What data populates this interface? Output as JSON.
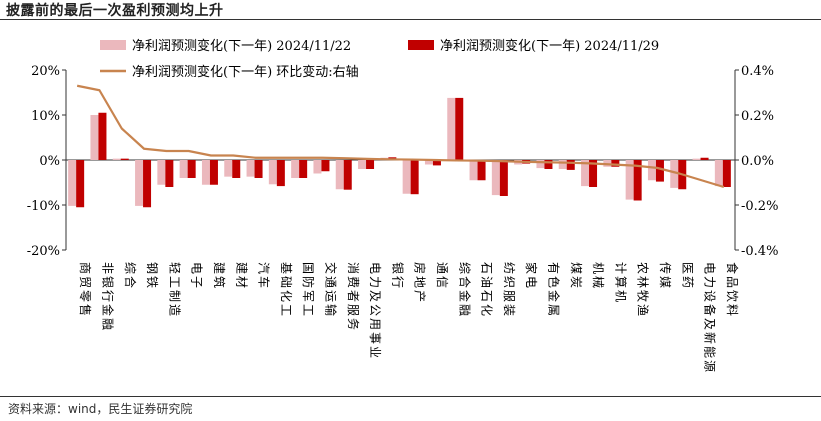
{
  "header": {
    "title": "披露前的最后一次盈利预测均上升"
  },
  "footer": {
    "source": "资料来源：wind，民生证券研究院"
  },
  "colors": {
    "series_a": "#ebb8bd",
    "series_b": "#c00000",
    "series_c": "#c8844f",
    "axis": "#333333"
  },
  "chart_data": {
    "type": "bar",
    "title": "",
    "xlabel": "",
    "ylabel": "",
    "categories": [
      "商贸零售",
      "非银行金融",
      "综合",
      "钢铁",
      "轻工制造",
      "电子",
      "建筑",
      "建材",
      "汽车",
      "基础化工",
      "国防军工",
      "交通运输",
      "消费者服务",
      "电力及公用事业",
      "银行",
      "房地产",
      "通信",
      "综合金融",
      "石油石化",
      "纺织服装",
      "家电",
      "有色金属",
      "煤炭",
      "机械",
      "计算机",
      "农林牧渔",
      "传媒",
      "医药",
      "电力设备及新能源",
      "食品饮料"
    ],
    "series": [
      {
        "name": "净利润预测变化(下一年) 2024/11/22",
        "kind": "bar",
        "axis": "left",
        "values": [
          -10.2,
          10.0,
          0.3,
          -10.2,
          -5.5,
          -4.0,
          -5.5,
          -3.7,
          -3.7,
          -5.4,
          -4.0,
          -3.0,
          -6.5,
          -2.0,
          0.5,
          -7.5,
          -1.0,
          13.8,
          -4.5,
          -7.8,
          -1.0,
          -1.8,
          -2.0,
          -5.8,
          -1.5,
          -8.8,
          -4.5,
          -6.2,
          0.3,
          -5.8
        ]
      },
      {
        "name": "净利润预测变化(下一年) 2024/11/29",
        "kind": "bar",
        "axis": "left",
        "values": [
          -10.5,
          10.5,
          0.3,
          -10.5,
          -6.0,
          -4.0,
          -5.5,
          -4.0,
          -4.0,
          -5.8,
          -4.0,
          -2.5,
          -6.6,
          -2.0,
          0.6,
          -7.6,
          -1.2,
          13.8,
          -4.5,
          -8.0,
          -0.8,
          -2.0,
          -2.2,
          -6.0,
          -1.5,
          -9.0,
          -4.8,
          -6.5,
          0.5,
          -6.0
        ]
      },
      {
        "name": "净利润预测变化(下一年) 环比变动:右轴",
        "kind": "line",
        "axis": "right",
        "values": [
          0.33,
          0.31,
          0.14,
          0.05,
          0.04,
          0.04,
          0.02,
          0.02,
          0.01,
          0.01,
          0.01,
          0.01,
          0.008,
          0.005,
          0.003,
          0.002,
          0.0,
          -0.002,
          -0.003,
          -0.005,
          -0.008,
          -0.01,
          -0.012,
          -0.015,
          -0.02,
          -0.025,
          -0.035,
          -0.06,
          -0.09,
          -0.12
        ]
      }
    ],
    "ylim": [
      -20,
      20
    ],
    "yticks": [
      "-20%",
      "-10%",
      "0%",
      "10%",
      "20%"
    ],
    "y2lim": [
      -0.4,
      0.4
    ],
    "y2ticks": [
      "-0.4%",
      "-0.2%",
      "0.0%",
      "0.2%",
      "0.4%"
    ],
    "grid": false,
    "legend": "top"
  }
}
